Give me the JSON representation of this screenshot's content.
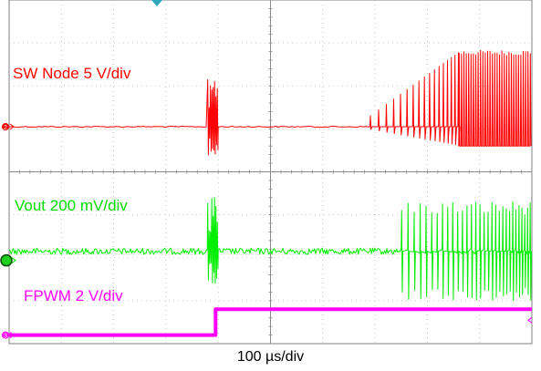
{
  "chart_data": {
    "type": "line",
    "title": "",
    "xlabel": "100 µs/div",
    "ylabel": "",
    "grid": true,
    "x_divisions": 10,
    "y_divisions": 8,
    "trigger_marker": "triangle",
    "series": [
      {
        "name": "SW Node 5 V/div",
        "marker": "2",
        "color": "#ff0000",
        "baseline_div": 2.95,
        "segments": [
          {
            "from_div": 0,
            "to_div": 3.8,
            "behavior": "flat"
          },
          {
            "from_div": 3.8,
            "to_div": 4.0,
            "behavior": "burst"
          },
          {
            "from_div": 4.0,
            "to_div": 6.9,
            "behavior": "flat"
          },
          {
            "from_div": 6.9,
            "to_div": 8.6,
            "behavior": "spikes-increasing"
          },
          {
            "from_div": 8.6,
            "to_div": 10,
            "behavior": "switching",
            "low_div": 3.4
          }
        ]
      },
      {
        "name": "Vout 200 mV/div",
        "marker": "",
        "color": "#00ee00",
        "baseline_div": 5.85,
        "segments": [
          {
            "from_div": 0,
            "to_div": 3.8,
            "behavior": "noisy-flat"
          },
          {
            "from_div": 3.8,
            "to_div": 4.0,
            "behavior": "burst"
          },
          {
            "from_div": 4.0,
            "to_div": 7.5,
            "behavior": "noisy-flat"
          },
          {
            "from_div": 7.5,
            "to_div": 10,
            "behavior": "spikes-dense"
          }
        ]
      },
      {
        "name": "FPWM 2 V/div",
        "marker": "3",
        "color": "#ff00ff",
        "baseline_div": 7.8,
        "segments": [
          {
            "from_div": 0,
            "to_div": 3.95,
            "behavior": "low"
          },
          {
            "from_div": 3.95,
            "to_div": 10,
            "behavior": "high",
            "level_div": 7.2
          }
        ]
      }
    ]
  }
}
